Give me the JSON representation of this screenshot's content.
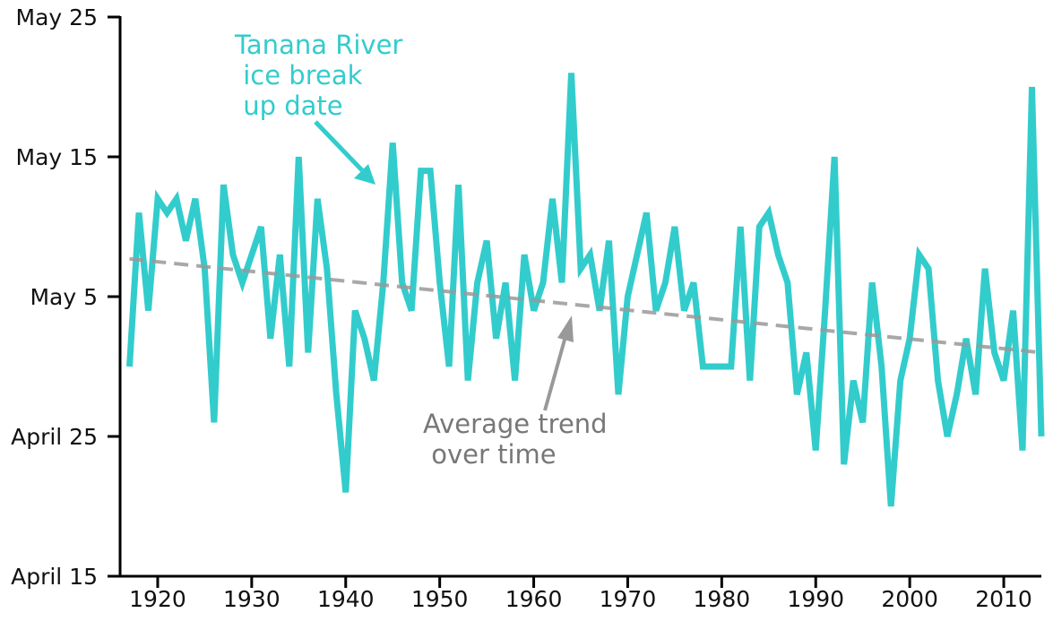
{
  "colors": {
    "series": "#33cccc",
    "trend": "#999999",
    "axis": "#000000",
    "text": "#111111",
    "trend_annotation": "#777777"
  },
  "chart_data": {
    "type": "line",
    "title": "",
    "xlabel": "",
    "ylabel": "",
    "xlim": [
      1916,
      2014
    ],
    "ylim_day_of_year": [
      105,
      145
    ],
    "x_ticks": [
      1920,
      1930,
      1940,
      1950,
      1960,
      1970,
      1980,
      1990,
      2000,
      2010
    ],
    "y_ticks": [
      {
        "label": "May 25",
        "day_of_year": 145
      },
      {
        "label": "May 15",
        "day_of_year": 135
      },
      {
        "label": "May 5",
        "day_of_year": 125
      },
      {
        "label": "April 25",
        "day_of_year": 115
      },
      {
        "label": "April 15",
        "day_of_year": 105
      }
    ],
    "grid": false,
    "annotations": {
      "series_label_lines": [
        "Tanana River",
        " ice break",
        " up date"
      ],
      "trend_label_lines": [
        "Average trend",
        " over time"
      ]
    },
    "series": [
      {
        "style": "solid",
        "x": [
          1917,
          1918,
          1919,
          1920,
          1921,
          1922,
          1923,
          1924,
          1925,
          1926,
          1927,
          1928,
          1929,
          1930,
          1931,
          1932,
          1933,
          1934,
          1935,
          1936,
          1937,
          1938,
          1939,
          1940,
          1941,
          1942,
          1943,
          1944,
          1945,
          1946,
          1947,
          1948,
          1949,
          1950,
          1951,
          1952,
          1953,
          1954,
          1955,
          1956,
          1957,
          1958,
          1959,
          1960,
          1961,
          1962,
          1963,
          1964,
          1965,
          1966,
          1967,
          1968,
          1969,
          1970,
          1971,
          1972,
          1973,
          1974,
          1975,
          1976,
          1977,
          1978,
          1979,
          1980,
          1981,
          1982,
          1983,
          1984,
          1985,
          1986,
          1987,
          1988,
          1989,
          1990,
          1991,
          1992,
          1993,
          1994,
          1995,
          1996,
          1997,
          1998,
          1999,
          2000,
          2001,
          2002,
          2003,
          2004,
          2005,
          2006,
          2007,
          2008,
          2009,
          2010,
          2011,
          2012,
          2013,
          2014
        ],
        "y": [
          120,
          131,
          124,
          132,
          131,
          132,
          129,
          132,
          127,
          116,
          133,
          128,
          126,
          128,
          130,
          122,
          128,
          120,
          135,
          121,
          132,
          127,
          118,
          111,
          124,
          122,
          119,
          126,
          136,
          126,
          124,
          134,
          134,
          126,
          120,
          133,
          119,
          126,
          129,
          122,
          126,
          119,
          128,
          124,
          126,
          132,
          126,
          141,
          127,
          128,
          124,
          129,
          118,
          125,
          128,
          131,
          124,
          126,
          130,
          124,
          126,
          120,
          120,
          120,
          120,
          130,
          119,
          130,
          131,
          128,
          126,
          118,
          121,
          114,
          124,
          135,
          113,
          119,
          116,
          126,
          120,
          110,
          119,
          122,
          128,
          127,
          119,
          115,
          118,
          122,
          118,
          127,
          121,
          119,
          124,
          114,
          140,
          115
        ]
      },
      {
        "style": "dashed",
        "x": [
          1917,
          2014
        ],
        "y": [
          127.7,
          121
        ]
      }
    ]
  }
}
